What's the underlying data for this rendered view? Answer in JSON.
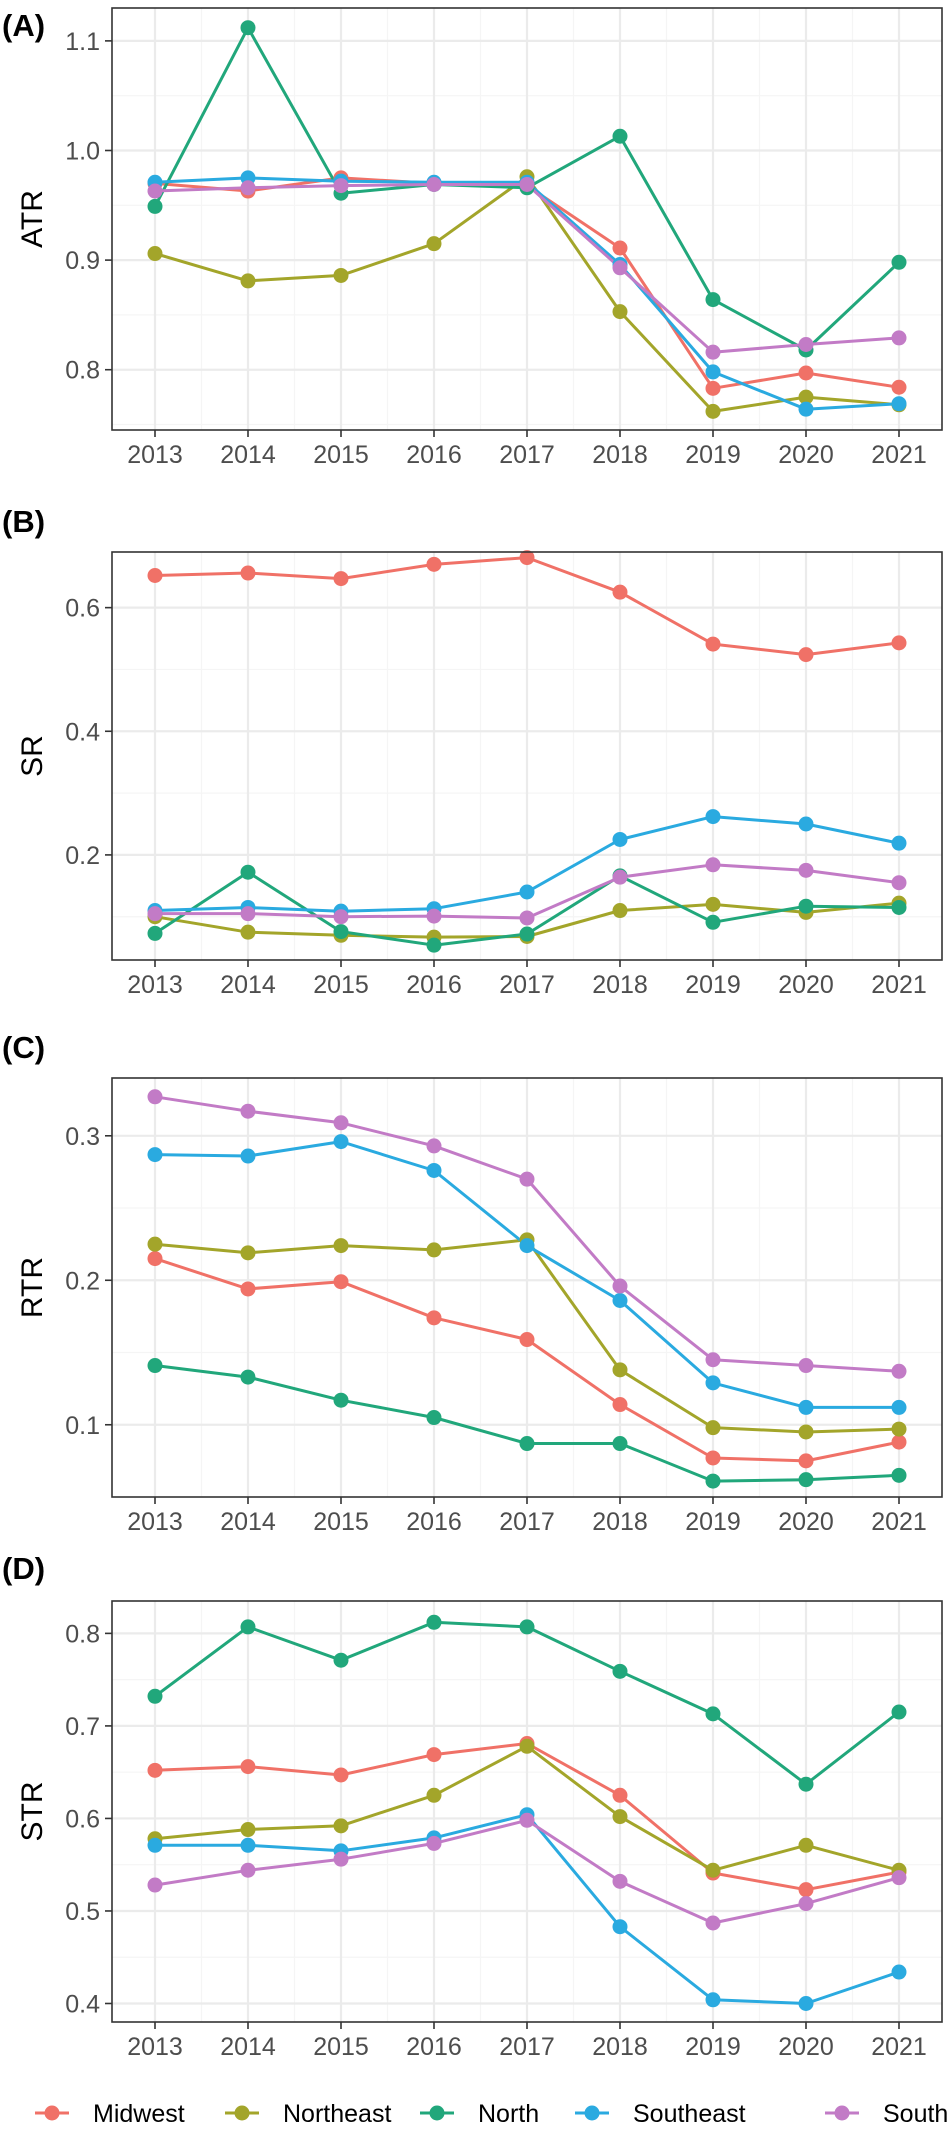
{
  "chart_data": [
    {
      "type": "line",
      "panel_label": "(A)",
      "ylabel": "ATR",
      "xlabel": "",
      "categories": [
        "2013",
        "2014",
        "2015",
        "2016",
        "2017",
        "2018",
        "2019",
        "2020",
        "2021"
      ],
      "ylim": [
        0.745,
        1.13
      ],
      "yticks": [
        0.8,
        0.9,
        1.0,
        1.1
      ],
      "ytick_labels": [
        "0.8",
        "0.9",
        "1.0",
        "1.1"
      ],
      "grid": true,
      "series": [
        {
          "name": "Midwest",
          "values": [
            0.97,
            0.963,
            0.975,
            0.97,
            0.968,
            0.911,
            0.783,
            0.797,
            0.784
          ]
        },
        {
          "name": "Northeast",
          "values": [
            0.906,
            0.881,
            0.886,
            0.915,
            0.976,
            0.853,
            0.762,
            0.775,
            0.768
          ]
        },
        {
          "name": "North",
          "values": [
            0.949,
            1.112,
            0.961,
            0.969,
            0.966,
            1.013,
            0.864,
            0.818,
            0.898
          ]
        },
        {
          "name": "Southeast",
          "values": [
            0.971,
            0.975,
            0.972,
            0.971,
            0.971,
            0.896,
            0.798,
            0.764,
            0.769
          ]
        },
        {
          "name": "South",
          "values": [
            0.963,
            0.966,
            0.968,
            0.969,
            0.969,
            0.893,
            0.816,
            0.823,
            0.829
          ]
        }
      ]
    },
    {
      "type": "line",
      "panel_label": "(B)",
      "ylabel": "SR",
      "xlabel": "",
      "categories": [
        "2013",
        "2014",
        "2015",
        "2016",
        "2017",
        "2018",
        "2019",
        "2020",
        "2021"
      ],
      "ylim": [
        0.03,
        0.69
      ],
      "yticks": [
        0.2,
        0.4,
        0.6
      ],
      "ytick_labels": [
        "0.2",
        "0.4",
        "0.6"
      ],
      "grid": true,
      "series": [
        {
          "name": "Midwest",
          "values": [
            0.652,
            0.656,
            0.647,
            0.67,
            0.681,
            0.625,
            0.541,
            0.524,
            0.543
          ]
        },
        {
          "name": "Northeast",
          "values": [
            0.1,
            0.075,
            0.07,
            0.067,
            0.068,
            0.11,
            0.12,
            0.107,
            0.122
          ]
        },
        {
          "name": "North",
          "values": [
            0.073,
            0.172,
            0.076,
            0.054,
            0.072,
            0.166,
            0.091,
            0.117,
            0.115
          ]
        },
        {
          "name": "Southeast",
          "values": [
            0.11,
            0.115,
            0.109,
            0.113,
            0.14,
            0.225,
            0.262,
            0.25,
            0.219
          ]
        },
        {
          "name": "South",
          "values": [
            0.105,
            0.105,
            0.1,
            0.101,
            0.098,
            0.164,
            0.184,
            0.175,
            0.155
          ]
        }
      ]
    },
    {
      "type": "line",
      "panel_label": "(C)",
      "ylabel": "RTR",
      "xlabel": "",
      "categories": [
        "2013",
        "2014",
        "2015",
        "2016",
        "2017",
        "2018",
        "2019",
        "2020",
        "2021"
      ],
      "ylim": [
        0.05,
        0.34
      ],
      "yticks": [
        0.1,
        0.2,
        0.3
      ],
      "ytick_labels": [
        "0.1",
        "0.2",
        "0.3"
      ],
      "grid": true,
      "series": [
        {
          "name": "Midwest",
          "values": [
            0.215,
            0.194,
            0.199,
            0.174,
            0.159,
            0.114,
            0.077,
            0.075,
            0.088
          ]
        },
        {
          "name": "Northeast",
          "values": [
            0.225,
            0.219,
            0.224,
            0.221,
            0.228,
            0.138,
            0.098,
            0.095,
            0.097
          ]
        },
        {
          "name": "North",
          "values": [
            0.141,
            0.133,
            0.117,
            0.105,
            0.087,
            0.087,
            0.061,
            0.062,
            0.065
          ]
        },
        {
          "name": "Southeast",
          "values": [
            0.287,
            0.286,
            0.296,
            0.276,
            0.224,
            0.186,
            0.129,
            0.112,
            0.112
          ]
        },
        {
          "name": "South",
          "values": [
            0.327,
            0.317,
            0.309,
            0.293,
            0.27,
            0.196,
            0.145,
            0.141,
            0.137
          ]
        }
      ]
    },
    {
      "type": "line",
      "panel_label": "(D)",
      "ylabel": "STR",
      "xlabel": "",
      "categories": [
        "2013",
        "2014",
        "2015",
        "2016",
        "2017",
        "2018",
        "2019",
        "2020",
        "2021"
      ],
      "ylim": [
        0.38,
        0.835
      ],
      "yticks": [
        0.4,
        0.5,
        0.6,
        0.7,
        0.8
      ],
      "ytick_labels": [
        "0.4",
        "0.5",
        "0.6",
        "0.7",
        "0.8"
      ],
      "grid": true,
      "series": [
        {
          "name": "Midwest",
          "values": [
            0.652,
            0.656,
            0.647,
            0.669,
            0.681,
            0.625,
            0.541,
            0.523,
            0.542
          ]
        },
        {
          "name": "Northeast",
          "values": [
            0.578,
            0.588,
            0.592,
            0.625,
            0.678,
            0.602,
            0.544,
            0.571,
            0.544
          ]
        },
        {
          "name": "North",
          "values": [
            0.732,
            0.807,
            0.771,
            0.812,
            0.807,
            0.759,
            0.713,
            0.637,
            0.715
          ]
        },
        {
          "name": "Southeast",
          "values": [
            0.571,
            0.571,
            0.565,
            0.579,
            0.604,
            0.483,
            0.404,
            0.4,
            0.434
          ]
        },
        {
          "name": "South",
          "values": [
            0.528,
            0.544,
            0.556,
            0.573,
            0.598,
            0.532,
            0.487,
            0.508,
            0.536
          ]
        }
      ]
    }
  ],
  "legend": {
    "position": "bottom",
    "items": [
      {
        "name": "Midwest",
        "color": "#F07167"
      },
      {
        "name": "Northeast",
        "color": "#A3A52A"
      },
      {
        "name": "North",
        "color": "#21A77B"
      },
      {
        "name": "Southeast",
        "color": "#2AAAE0"
      },
      {
        "name": "South",
        "color": "#C27BC6"
      }
    ]
  },
  "colors": {
    "panel_background": "#FFFFFF",
    "grid_major": "#EBEBEB",
    "grid_minor": "#F5F5F5",
    "panel_border": "#333333",
    "tick_text": "#4D4D4D"
  }
}
